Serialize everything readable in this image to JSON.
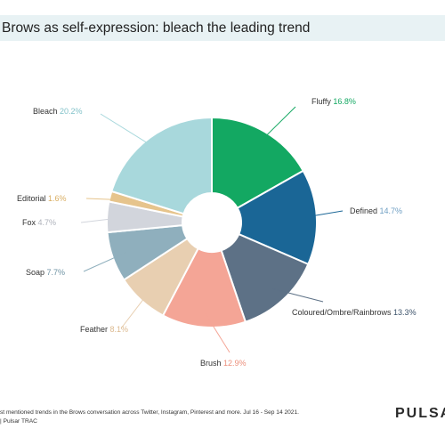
{
  "header": {
    "title": "Brows as self-expression: bleach the leading trend"
  },
  "chart_data": {
    "type": "pie",
    "donut": true,
    "title": "Brows as self-expression: bleach the leading trend",
    "slices": [
      {
        "label": "Fluffy",
        "value": 16.8,
        "display": "16.8%",
        "color": "#13a862",
        "label_color": "#13a862"
      },
      {
        "label": "Defined",
        "value": 14.7,
        "display": "14.7%",
        "color": "#1a6696",
        "label_color": "#6f9fc3"
      },
      {
        "label": "Coloured/Ombre/Rainbrows",
        "value": 13.3,
        "display": "13.3%",
        "color": "#5d7186",
        "label_color": "#3d536b"
      },
      {
        "label": "Brush",
        "value": 12.9,
        "display": "12.9%",
        "color": "#f4a596",
        "label_color": "#ec8f7b"
      },
      {
        "label": "Feather",
        "value": 8.1,
        "display": "8.1%",
        "color": "#e8cfb1",
        "label_color": "#dcb98f"
      },
      {
        "label": "Soap",
        "value": 7.7,
        "display": "7.7%",
        "color": "#8fafbd",
        "label_color": "#6f93a4"
      },
      {
        "label": "Fox",
        "value": 4.7,
        "display": "4.7%",
        "color": "#d2d5dc",
        "label_color": "#aeb2bb"
      },
      {
        "label": "Editorial",
        "value": 1.6,
        "display": "1.6%",
        "color": "#e6c48c",
        "label_color": "#d9ae63"
      },
      {
        "label": "Bleach",
        "value": 20.2,
        "display": "20.2%",
        "color": "#a8d8dc",
        "label_color": "#82c2c9"
      }
    ]
  },
  "footer": {
    "line1": "st mentioned trends in the Brows conversation across Twitter, Instagram, Pinterest and more. Jul 16 - Sep 14 2021.",
    "line2": "Pulsar TRAC"
  },
  "logo": {
    "text": "PULSAR"
  }
}
